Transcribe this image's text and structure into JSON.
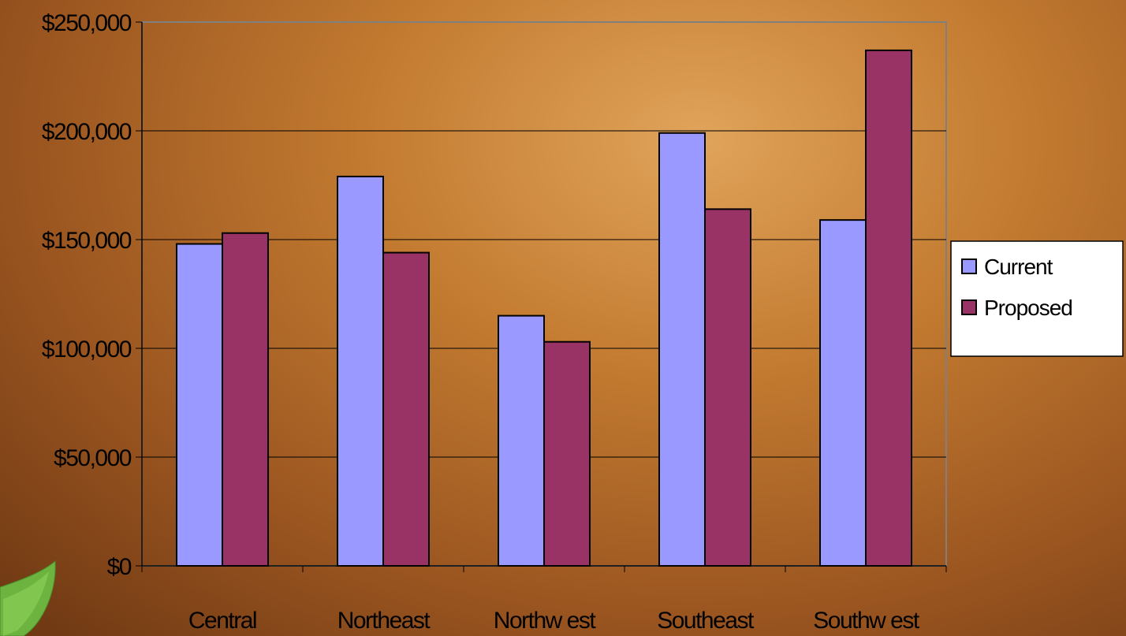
{
  "chart_data": {
    "type": "bar",
    "categories": [
      "Central",
      "Northeast",
      "Northw est",
      "Southeast",
      "Southw est"
    ],
    "series": [
      {
        "name": "Current",
        "color": "#9999ff",
        "values": [
          148000,
          179000,
          115000,
          199000,
          159000
        ]
      },
      {
        "name": "Proposed",
        "color": "#993366",
        "values": [
          153000,
          144000,
          103000,
          164000,
          237000
        ]
      }
    ],
    "ylim": [
      0,
      250000
    ],
    "yticks": [
      0,
      50000,
      100000,
      150000,
      200000,
      250000
    ],
    "ytick_labels": [
      "$0",
      "$50,000",
      "$100,000",
      "$150,000",
      "$200,000",
      "$250,000"
    ],
    "grid": true,
    "legend_position": "right"
  }
}
